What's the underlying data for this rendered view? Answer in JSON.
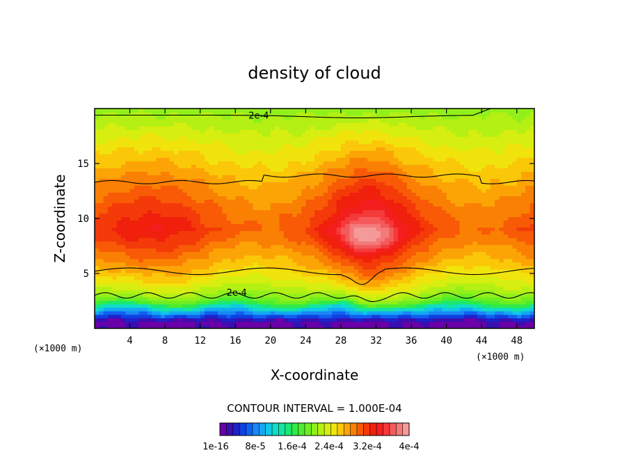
{
  "chart_data": {
    "type": "heatmap",
    "title": "density of cloud",
    "xlabel": "X-coordinate",
    "ylabel": "Z-coordinate",
    "x_unit": "(×1000 m)",
    "z_unit": "(×1000 m)",
    "xlim": [
      0,
      50
    ],
    "ylim": [
      0,
      20
    ],
    "x_ticks": [
      4,
      8,
      12,
      16,
      20,
      24,
      28,
      32,
      36,
      40,
      44,
      48
    ],
    "y_ticks": [
      5,
      10,
      15
    ],
    "contour_interval_text": "CONTOUR INTERVAL = 1.000E-04",
    "contour_labels": [
      {
        "text": "2e-4",
        "x": 15,
        "z": 3.3
      },
      {
        "text": "2e-4",
        "x": 17.5,
        "z": 19.4
      }
    ],
    "colorbar": {
      "colors": [
        "#6a00a8",
        "#3a0fb0",
        "#1e22c8",
        "#1040e0",
        "#1060f0",
        "#1a86f5",
        "#14a8f2",
        "#10c8e8",
        "#10dcc8",
        "#12e6a0",
        "#1ae870",
        "#30ea48",
        "#4cec2e",
        "#6eee20",
        "#92f01a",
        "#b4f014",
        "#d6ee10",
        "#f0e40c",
        "#fac808",
        "#fca406",
        "#fa8004",
        "#f85a06",
        "#f43a08",
        "#f0200c",
        "#f41e1e",
        "#f43a3a",
        "#f45a5a",
        "#f47a7a",
        "#f49a9a"
      ],
      "labels": [
        "1e-16",
        "8e-5",
        "1.6e-4",
        "2.4e-4",
        "3.2e-4",
        "4e-4"
      ]
    }
  }
}
